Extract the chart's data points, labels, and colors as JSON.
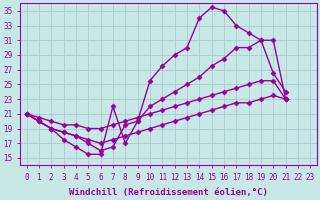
{
  "background_color": "#c8e8e8",
  "grid_color": "#aacccc",
  "line_color": "#990099",
  "marker": "D",
  "markersize": 2.5,
  "linewidth": 1.0,
  "xlabel": "Windchill (Refroidissement éolien,°C)",
  "xlabel_fontsize": 6.5,
  "xlim": [
    -0.5,
    23.5
  ],
  "ylim": [
    14,
    36
  ],
  "xticks": [
    0,
    1,
    2,
    3,
    4,
    5,
    6,
    7,
    8,
    9,
    10,
    11,
    12,
    13,
    14,
    15,
    16,
    17,
    18,
    19,
    20,
    21,
    22,
    23
  ],
  "yticks": [
    15,
    17,
    19,
    21,
    23,
    25,
    27,
    29,
    31,
    33,
    35
  ],
  "tick_fontsize": 5.5,
  "series": [
    {
      "x": [
        0,
        1,
        2,
        3,
        4,
        5,
        6,
        7,
        8,
        9,
        10,
        11,
        12,
        13,
        14,
        15,
        16,
        17,
        18,
        19,
        20,
        21,
        22,
        23
      ],
      "y": [
        21,
        20,
        19,
        17.5,
        16.5,
        15.5,
        15.5,
        22,
        17,
        20,
        25.5,
        27.5,
        29,
        30,
        34,
        35.5,
        35,
        33,
        32,
        31,
        26.5,
        24,
        null,
        null
      ]
    },
    {
      "x": [
        0,
        1,
        2,
        3,
        4,
        5,
        6,
        7,
        8,
        9,
        10,
        11,
        12,
        13,
        14,
        15,
        16,
        17,
        18,
        19,
        20,
        21,
        22,
        23
      ],
      "y": [
        21,
        20,
        19,
        18.5,
        18,
        17,
        16,
        16.5,
        19.5,
        20,
        22,
        23,
        24,
        25,
        26,
        27.5,
        28.5,
        30,
        30,
        31,
        31,
        23,
        null,
        null
      ]
    },
    {
      "x": [
        0,
        1,
        2,
        3,
        4,
        5,
        6,
        7,
        8,
        9,
        10,
        11,
        12,
        13,
        14,
        15,
        16,
        17,
        18,
        19,
        20,
        21,
        22,
        23
      ],
      "y": [
        21,
        20.5,
        20,
        19.5,
        19.5,
        19,
        19,
        19.5,
        20,
        20.5,
        21,
        21.5,
        22,
        22.5,
        23,
        23.5,
        24,
        24.5,
        25,
        25.5,
        25.5,
        23,
        null,
        null
      ]
    },
    {
      "x": [
        0,
        1,
        2,
        3,
        4,
        5,
        6,
        7,
        8,
        9,
        10,
        11,
        12,
        13,
        14,
        15,
        16,
        17,
        18,
        19,
        20,
        21,
        22,
        23
      ],
      "y": [
        21,
        20,
        19,
        18.5,
        18,
        17.5,
        17,
        17.5,
        18,
        18.5,
        19,
        19.5,
        20,
        20.5,
        21,
        21.5,
        22,
        22.5,
        22.5,
        23,
        23.5,
        23,
        null,
        null
      ]
    }
  ]
}
